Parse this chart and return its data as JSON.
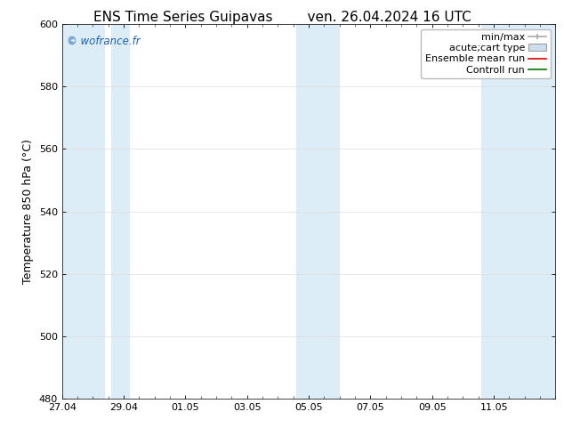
{
  "title_left": "ENS Time Series Guipavas",
  "title_right": "ven. 26.04.2024 16 UTC",
  "ylabel": "Temperature 850 hPa (°C)",
  "watermark": "© wofrance.fr",
  "watermark_color": "#1a5fb4",
  "ylim": [
    480,
    600
  ],
  "yticks": [
    480,
    500,
    520,
    540,
    560,
    580,
    600
  ],
  "xtick_labels": [
    "27.04",
    "29.04",
    "01.05",
    "03.05",
    "05.05",
    "07.05",
    "09.05",
    "11.05"
  ],
  "xtick_positions": [
    0,
    2,
    4,
    6,
    8,
    10,
    12,
    14
  ],
  "xlim": [
    0,
    16
  ],
  "shaded_bands": [
    {
      "x_start": 0.0,
      "x_end": 1.5,
      "color": "#ddeeff"
    },
    {
      "x_start": 1.5,
      "x_end": 2.0,
      "color": "#ddeeff"
    },
    {
      "x_start": 7.5,
      "x_end": 8.5,
      "color": "#ddeeff"
    },
    {
      "x_start": 8.5,
      "x_end": 9.0,
      "color": "#ddeeff"
    },
    {
      "x_start": 13.5,
      "x_end": 16.0,
      "color": "#ddeeff"
    }
  ],
  "legend_items": [
    {
      "label": "min/max",
      "type": "minmax",
      "color": "#aaaaaa"
    },
    {
      "label": "acute;cart type",
      "type": "box",
      "facecolor": "#ccddf0",
      "edgecolor": "#999999"
    },
    {
      "label": "Ensemble mean run",
      "type": "line",
      "color": "#dd0000"
    },
    {
      "label": "Controll run",
      "type": "line",
      "color": "#007700"
    }
  ],
  "bg_color": "#ffffff",
  "plot_bg_color": "#ffffff",
  "spine_color": "#222222",
  "grid_color": "#dddddd",
  "title_fontsize": 11,
  "label_fontsize": 9,
  "tick_fontsize": 8,
  "legend_fontsize": 8
}
